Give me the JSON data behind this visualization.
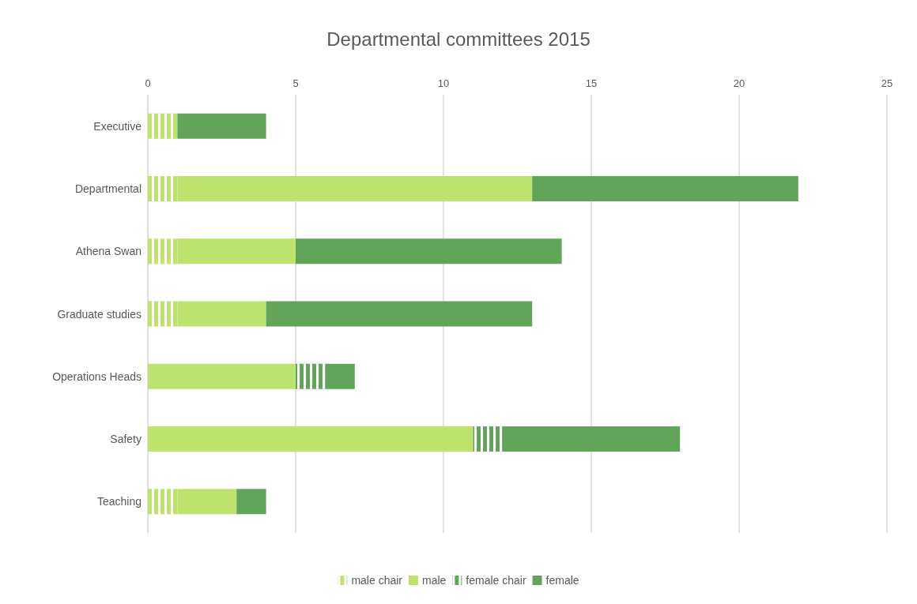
{
  "chart_data": {
    "type": "bar",
    "title": "Departmental committees 2015",
    "orientation": "horizontal",
    "stacked": true,
    "categories": [
      "Executive",
      "Departmental",
      "Athena Swan",
      "Graduate studies",
      "Operations Heads",
      "Safety",
      "Teaching"
    ],
    "series": [
      {
        "name": "male chair",
        "color": "#bde36e",
        "values": [
          1,
          1,
          1,
          1,
          0,
          0,
          1
        ]
      },
      {
        "name": "male",
        "color": "#bde36e",
        "values": [
          0,
          12,
          4,
          3,
          5,
          11,
          2
        ]
      },
      {
        "name": "female chair",
        "color": "#62a45a",
        "values": [
          0,
          0,
          0,
          0,
          1,
          1,
          0
        ]
      },
      {
        "name": "female",
        "color": "#62a45a",
        "values": [
          3,
          9,
          9,
          9,
          1,
          6,
          1
        ]
      }
    ],
    "xlim": [
      0,
      25
    ],
    "xticks": [
      0,
      5,
      10,
      15,
      20,
      25
    ],
    "grid": "x",
    "legend": "bottom"
  }
}
